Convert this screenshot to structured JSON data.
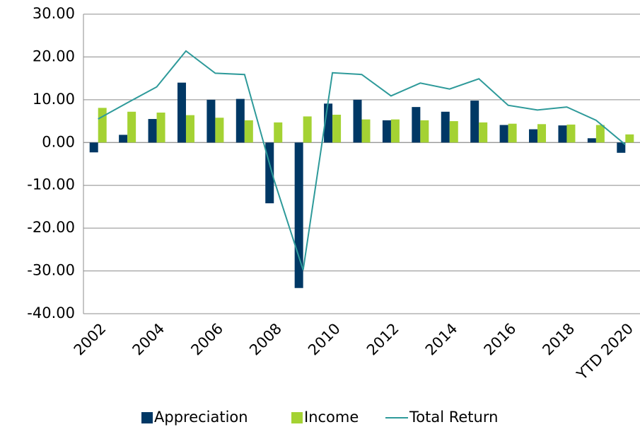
{
  "chart_data": {
    "type": "bar-line",
    "categories": [
      "2002",
      null,
      "2004",
      null,
      "2006",
      null,
      "2008",
      null,
      "2010",
      null,
      "2012",
      null,
      "2014",
      null,
      "2016",
      null,
      "2018",
      null,
      "YTD 2020"
    ],
    "series": [
      {
        "name": "Appreciation",
        "color": "#003865",
        "type": "bar",
        "values": [
          -2.3,
          1.8,
          5.5,
          14.0,
          10.0,
          10.2,
          -14.2,
          -34.0,
          9.1,
          10.0,
          5.2,
          8.3,
          7.2,
          9.8,
          4.1,
          3.1,
          4.0,
          1.0,
          -2.4
        ]
      },
      {
        "name": "Income",
        "color": "#a4d233",
        "type": "bar",
        "values": [
          8.1,
          7.2,
          7.0,
          6.4,
          5.8,
          5.2,
          4.7,
          6.1,
          6.5,
          5.4,
          5.4,
          5.2,
          5.0,
          4.7,
          4.4,
          4.3,
          4.2,
          4.1,
          1.9
        ]
      },
      {
        "name": "Total Return",
        "color": "#2e9a9a",
        "type": "line",
        "values": [
          5.5,
          9.3,
          13.0,
          21.4,
          16.2,
          15.9,
          -8.6,
          -29.8,
          16.3,
          15.9,
          10.9,
          13.9,
          12.5,
          14.9,
          8.7,
          7.6,
          8.3,
          5.2,
          -0.5
        ]
      }
    ],
    "ylim": [
      -40,
      30
    ],
    "yticks": [
      {
        "value": -40,
        "label": "-40.00"
      },
      {
        "value": -30,
        "label": "-30.00"
      },
      {
        "value": -20,
        "label": "-20.00"
      },
      {
        "value": -10,
        "label": "-10.00"
      },
      {
        "value": 0,
        "label": "0.00"
      },
      {
        "value": 10,
        "label": "10.00"
      },
      {
        "value": 20,
        "label": "20.00"
      },
      {
        "value": 30,
        "label": "30.00"
      }
    ],
    "grid": true,
    "legend": "bottom"
  }
}
